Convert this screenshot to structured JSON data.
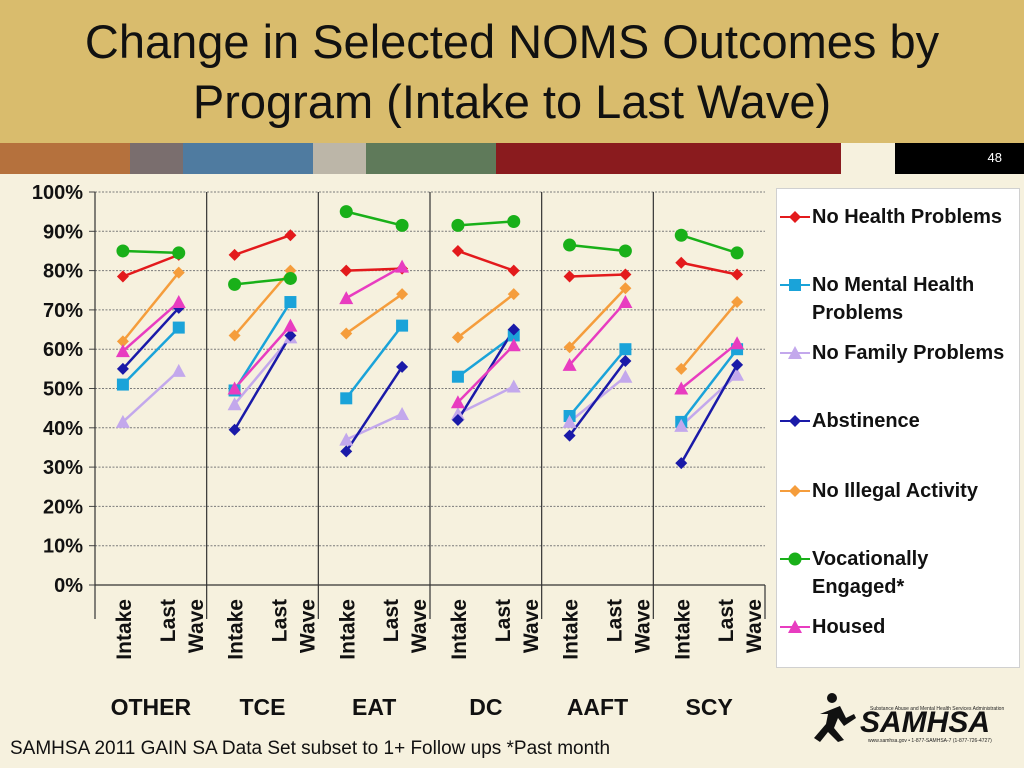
{
  "slide": {
    "title": "Change in Selected NOMS Outcomes by Program (Intake to Last Wave)",
    "slide_number": "48",
    "footer_note": "SAMHSA 2011 GAIN SA Data Set subset to 1+ Follow ups      *Past month",
    "logo_text": "SAMHSA",
    "logo_subtext": "Substance Abuse and Mental Health Services Administration",
    "logo_contact": "www.samhsa.gov • 1-877-SAMHSA-7 (1-877-726-4727)",
    "stripe_colors": [
      "#b5713d",
      "#7a6e6e",
      "#4f7ba0",
      "#bcb6a8",
      "#5f7a5a",
      "#8a1b1e",
      "#f6f1de",
      "#000000"
    ]
  },
  "chart_data": {
    "type": "line",
    "groups": [
      "OTHER",
      "TCE",
      "EAT",
      "DC",
      "AAFT",
      "SCY"
    ],
    "x_labels": [
      "Intake",
      "Last Wave"
    ],
    "ylim": [
      0,
      100
    ],
    "yticks": [
      "0%",
      "10%",
      "20%",
      "30%",
      "40%",
      "50%",
      "60%",
      "70%",
      "80%",
      "90%",
      "100%"
    ],
    "grid": true,
    "legend_position": "right",
    "series": [
      {
        "name": "No Health Problems",
        "color": "#e31a1c",
        "marker": "diamond",
        "values": [
          [
            78.5,
            84
          ],
          [
            84,
            89
          ],
          [
            80,
            80.5
          ],
          [
            85,
            80
          ],
          [
            78.5,
            79
          ],
          [
            82,
            79
          ]
        ]
      },
      {
        "name": "No Mental Health Problems",
        "color": "#1aa3d9",
        "marker": "square",
        "values": [
          [
            51,
            65.5
          ],
          [
            49.5,
            72
          ],
          [
            47.5,
            66
          ],
          [
            53,
            63.5
          ],
          [
            43,
            60
          ],
          [
            41.5,
            60
          ]
        ]
      },
      {
        "name": "No Family Problems",
        "color": "#c3a8ec",
        "marker": "triangle",
        "values": [
          [
            41.5,
            54.5
          ],
          [
            46,
            63
          ],
          [
            37,
            43.5
          ],
          [
            43.5,
            50.5
          ],
          [
            41.5,
            53
          ],
          [
            40.5,
            53.5
          ]
        ]
      },
      {
        "name": "Abstinence",
        "color": "#1a1aa8",
        "marker": "diamond",
        "values": [
          [
            55,
            70.5
          ],
          [
            39.5,
            63.5
          ],
          [
            34,
            55.5
          ],
          [
            42,
            65
          ],
          [
            38,
            57
          ],
          [
            31,
            56
          ]
        ]
      },
      {
        "name": "No Illegal Activity",
        "color": "#f59d3c",
        "marker": "diamond",
        "values": [
          [
            62,
            79.5
          ],
          [
            63.5,
            80
          ],
          [
            64,
            74
          ],
          [
            63,
            74
          ],
          [
            60.5,
            75.5
          ],
          [
            55,
            72
          ]
        ]
      },
      {
        "name": "Vocationally Engaged*",
        "color": "#19b019",
        "marker": "circle",
        "values": [
          [
            85,
            84.5
          ],
          [
            76.5,
            78
          ],
          [
            95,
            91.5
          ],
          [
            91.5,
            92.5
          ],
          [
            86.5,
            85
          ],
          [
            89,
            84.5
          ]
        ]
      },
      {
        "name": "Housed",
        "color": "#e83cc0",
        "marker": "triangle",
        "values": [
          [
            59.5,
            72
          ],
          [
            50,
            66
          ],
          [
            73,
            81
          ],
          [
            46.5,
            61
          ],
          [
            56,
            72
          ],
          [
            50,
            61.5
          ]
        ]
      }
    ]
  }
}
